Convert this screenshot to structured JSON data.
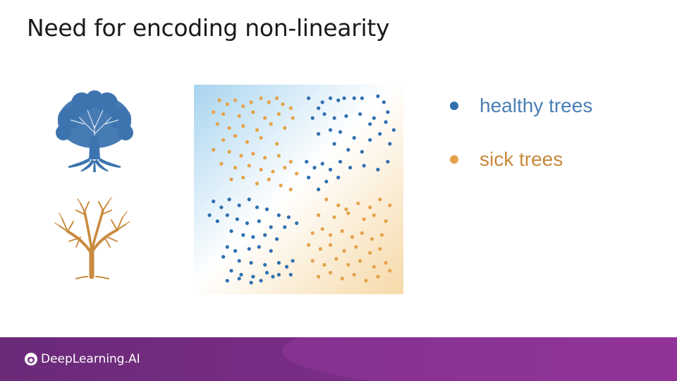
{
  "slide": {
    "title": "Need for encoding non-linearity"
  },
  "legend": {
    "items": [
      {
        "label": "healthy trees",
        "color": "#2f6fb0",
        "text_color": "#4a7fb5"
      },
      {
        "label": "sick trees",
        "color": "#e5a24a",
        "text_color": "#c8893c"
      }
    ]
  },
  "footer": {
    "brand": "DeepLearning.AI"
  },
  "chart_data": {
    "type": "scatter",
    "title": "",
    "xlabel": "",
    "ylabel": "",
    "xlim": [
      0,
      1
    ],
    "ylim": [
      0,
      1
    ],
    "grid": false,
    "series": [
      {
        "name": "healthy trees",
        "color": "#2f6fb0",
        "points": [
          [
            0.55,
            0.96
          ],
          [
            0.6,
            0.91
          ],
          [
            0.62,
            0.94
          ],
          [
            0.66,
            0.96
          ],
          [
            0.7,
            0.95
          ],
          [
            0.73,
            0.96
          ],
          [
            0.78,
            0.96
          ],
          [
            0.82,
            0.96
          ],
          [
            0.9,
            0.97
          ],
          [
            0.93,
            0.94
          ],
          [
            0.57,
            0.86
          ],
          [
            0.63,
            0.88
          ],
          [
            0.68,
            0.86
          ],
          [
            0.74,
            0.87
          ],
          [
            0.81,
            0.88
          ],
          [
            0.88,
            0.86
          ],
          [
            0.95,
            0.89
          ],
          [
            0.98,
            0.8
          ],
          [
            0.94,
            0.84
          ],
          [
            0.86,
            0.83
          ],
          [
            0.6,
            0.78
          ],
          [
            0.66,
            0.8
          ],
          [
            0.71,
            0.79
          ],
          [
            0.78,
            0.76
          ],
          [
            0.86,
            0.75
          ],
          [
            0.91,
            0.78
          ],
          [
            0.96,
            0.73
          ],
          [
            0.75,
            0.7
          ],
          [
            0.68,
            0.73
          ],
          [
            0.82,
            0.69
          ],
          [
            0.54,
            0.64
          ],
          [
            0.58,
            0.61
          ],
          [
            0.62,
            0.63
          ],
          [
            0.66,
            0.6
          ],
          [
            0.71,
            0.64
          ],
          [
            0.76,
            0.61
          ],
          [
            0.83,
            0.62
          ],
          [
            0.9,
            0.6
          ],
          [
            0.95,
            0.64
          ],
          [
            0.64,
            0.54
          ],
          [
            0.7,
            0.56
          ],
          [
            0.55,
            0.56
          ],
          [
            0.6,
            0.5
          ],
          [
            0.07,
            0.44
          ],
          [
            0.11,
            0.41
          ],
          [
            0.15,
            0.45
          ],
          [
            0.2,
            0.42
          ],
          [
            0.25,
            0.45
          ],
          [
            0.29,
            0.41
          ],
          [
            0.34,
            0.4
          ],
          [
            0.4,
            0.37
          ],
          [
            0.45,
            0.36
          ],
          [
            0.05,
            0.37
          ],
          [
            0.09,
            0.34
          ],
          [
            0.14,
            0.37
          ],
          [
            0.19,
            0.35
          ],
          [
            0.24,
            0.33
          ],
          [
            0.3,
            0.34
          ],
          [
            0.36,
            0.31
          ],
          [
            0.43,
            0.31
          ],
          [
            0.49,
            0.33
          ],
          [
            0.16,
            0.29
          ],
          [
            0.22,
            0.27
          ],
          [
            0.27,
            0.26
          ],
          [
            0.33,
            0.27
          ],
          [
            0.39,
            0.25
          ],
          [
            0.14,
            0.21
          ],
          [
            0.18,
            0.19
          ],
          [
            0.25,
            0.2
          ],
          [
            0.3,
            0.21
          ],
          [
            0.36,
            0.19
          ],
          [
            0.12,
            0.16
          ],
          [
            0.2,
            0.14
          ],
          [
            0.26,
            0.13
          ],
          [
            0.33,
            0.12
          ],
          [
            0.4,
            0.13
          ],
          [
            0.44,
            0.11
          ],
          [
            0.47,
            0.14
          ],
          [
            0.16,
            0.09
          ],
          [
            0.21,
            0.07
          ],
          [
            0.27,
            0.06
          ],
          [
            0.34,
            0.08
          ],
          [
            0.4,
            0.07
          ],
          [
            0.46,
            0.07
          ],
          [
            0.14,
            0.04
          ],
          [
            0.2,
            0.05
          ],
          [
            0.26,
            0.03
          ],
          [
            0.31,
            0.04
          ],
          [
            0.37,
            0.06
          ]
        ]
      },
      {
        "name": "sick trees",
        "color": "#e5a24a",
        "points": [
          [
            0.1,
            0.95
          ],
          [
            0.14,
            0.93
          ],
          [
            0.18,
            0.95
          ],
          [
            0.22,
            0.92
          ],
          [
            0.26,
            0.94
          ],
          [
            0.31,
            0.96
          ],
          [
            0.35,
            0.94
          ],
          [
            0.39,
            0.96
          ],
          [
            0.42,
            0.93
          ],
          [
            0.46,
            0.91
          ],
          [
            0.07,
            0.89
          ],
          [
            0.12,
            0.88
          ],
          [
            0.2,
            0.87
          ],
          [
            0.27,
            0.89
          ],
          [
            0.33,
            0.86
          ],
          [
            0.4,
            0.88
          ],
          [
            0.47,
            0.86
          ],
          [
            0.09,
            0.83
          ],
          [
            0.15,
            0.81
          ],
          [
            0.22,
            0.82
          ],
          [
            0.29,
            0.8
          ],
          [
            0.36,
            0.83
          ],
          [
            0.43,
            0.81
          ],
          [
            0.12,
            0.75
          ],
          [
            0.18,
            0.77
          ],
          [
            0.24,
            0.74
          ],
          [
            0.31,
            0.76
          ],
          [
            0.39,
            0.73
          ],
          [
            0.07,
            0.7
          ],
          [
            0.15,
            0.69
          ],
          [
            0.21,
            0.67
          ],
          [
            0.27,
            0.68
          ],
          [
            0.33,
            0.66
          ],
          [
            0.4,
            0.67
          ],
          [
            0.46,
            0.64
          ],
          [
            0.11,
            0.63
          ],
          [
            0.18,
            0.61
          ],
          [
            0.25,
            0.62
          ],
          [
            0.31,
            0.6
          ],
          [
            0.37,
            0.59
          ],
          [
            0.43,
            0.61
          ],
          [
            0.49,
            0.58
          ],
          [
            0.16,
            0.55
          ],
          [
            0.22,
            0.56
          ],
          [
            0.29,
            0.53
          ],
          [
            0.35,
            0.55
          ],
          [
            0.41,
            0.52
          ],
          [
            0.46,
            0.5
          ],
          [
            0.64,
            0.45
          ],
          [
            0.7,
            0.42
          ],
          [
            0.74,
            0.4
          ],
          [
            0.8,
            0.43
          ],
          [
            0.86,
            0.41
          ],
          [
            0.91,
            0.45
          ],
          [
            0.96,
            0.42
          ],
          [
            0.6,
            0.37
          ],
          [
            0.68,
            0.36
          ],
          [
            0.75,
            0.38
          ],
          [
            0.83,
            0.35
          ],
          [
            0.88,
            0.37
          ],
          [
            0.94,
            0.34
          ],
          [
            0.57,
            0.28
          ],
          [
            0.62,
            0.3
          ],
          [
            0.66,
            0.27
          ],
          [
            0.72,
            0.29
          ],
          [
            0.77,
            0.26
          ],
          [
            0.82,
            0.28
          ],
          [
            0.87,
            0.25
          ],
          [
            0.92,
            0.27
          ],
          [
            0.55,
            0.22
          ],
          [
            0.61,
            0.2
          ],
          [
            0.66,
            0.22
          ],
          [
            0.73,
            0.19
          ],
          [
            0.79,
            0.21
          ],
          [
            0.86,
            0.18
          ],
          [
            0.91,
            0.2
          ],
          [
            0.57,
            0.14
          ],
          [
            0.63,
            0.12
          ],
          [
            0.69,
            0.15
          ],
          [
            0.75,
            0.12
          ],
          [
            0.81,
            0.14
          ],
          [
            0.88,
            0.11
          ],
          [
            0.94,
            0.13
          ],
          [
            0.6,
            0.06
          ],
          [
            0.66,
            0.08
          ],
          [
            0.72,
            0.05
          ],
          [
            0.78,
            0.07
          ],
          [
            0.84,
            0.04
          ],
          [
            0.9,
            0.06
          ],
          [
            0.96,
            0.09
          ]
        ]
      }
    ]
  }
}
